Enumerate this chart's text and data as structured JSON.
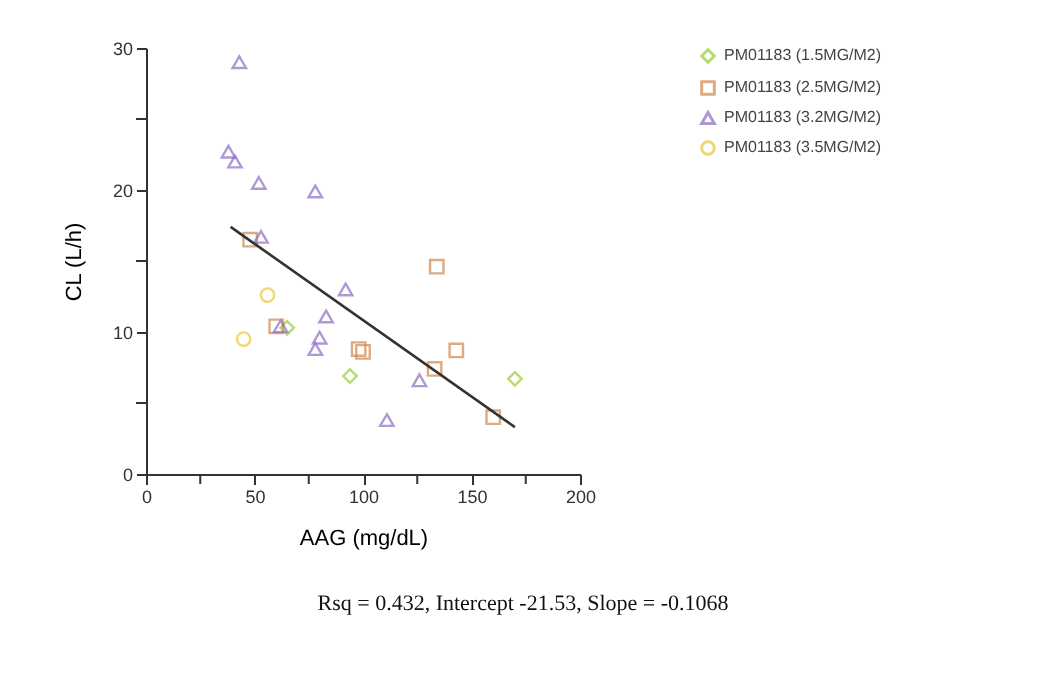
{
  "chart_data": {
    "type": "scatter",
    "xlabel": "AAG (mg/dL)",
    "ylabel": "CL (L/h)",
    "xlim": [
      0,
      200
    ],
    "ylim": [
      0,
      30
    ],
    "xticks": [
      0,
      {
        "value": 25,
        "label": null
      },
      50,
      {
        "value": 75,
        "label": null
      },
      100,
      {
        "value": 125,
        "label": null
      },
      150,
      {
        "value": 175,
        "label": null
      },
      200
    ],
    "yticks": [
      0,
      {
        "value": 5,
        "label": null
      },
      10,
      {
        "value": 15,
        "label": null
      },
      20,
      {
        "value": 25,
        "label": null
      },
      30
    ],
    "grid": false,
    "legend": "right",
    "annotations": [
      "Rsq = 0.432, Intercept -21.53, Slope = -0.1068"
    ],
    "series": [
      {
        "name": "PM01183 (1.5MG/M2)",
        "color": "#9acd32",
        "marker": "diamond",
        "x": [
          94,
          170,
          65
        ],
        "values": [
          6.9,
          6.7,
          10.3
        ]
      },
      {
        "name": "PM01183 (2.5MG/M2)",
        "color": "#d2874a",
        "marker": "square",
        "x": [
          48,
          60,
          98,
          100,
          134,
          133,
          143,
          160
        ],
        "values": [
          16.5,
          10.4,
          8.8,
          8.6,
          14.6,
          7.4,
          8.7,
          4.0
        ]
      },
      {
        "name": "PM01183 (3.2MG/M2)",
        "color": "#8e6fc4",
        "marker": "triangle",
        "x": [
          43,
          38,
          41,
          52,
          53,
          78,
          92,
          83,
          80,
          78,
          62,
          126,
          111
        ],
        "values": [
          29.0,
          22.7,
          22.0,
          20.5,
          16.7,
          19.9,
          13.0,
          11.1,
          9.6,
          8.8,
          10.4,
          6.6,
          3.8
        ]
      },
      {
        "name": "PM01183 (3.5MG/M2)",
        "color": "#e8c840",
        "marker": "circle",
        "x": [
          56,
          45
        ],
        "values": [
          12.6,
          9.5
        ]
      },
      {
        "type": "line",
        "color": "#333333",
        "marker": "none",
        "x": [
          39,
          170
        ],
        "values": [
          17.4,
          3.3
        ]
      }
    ]
  }
}
